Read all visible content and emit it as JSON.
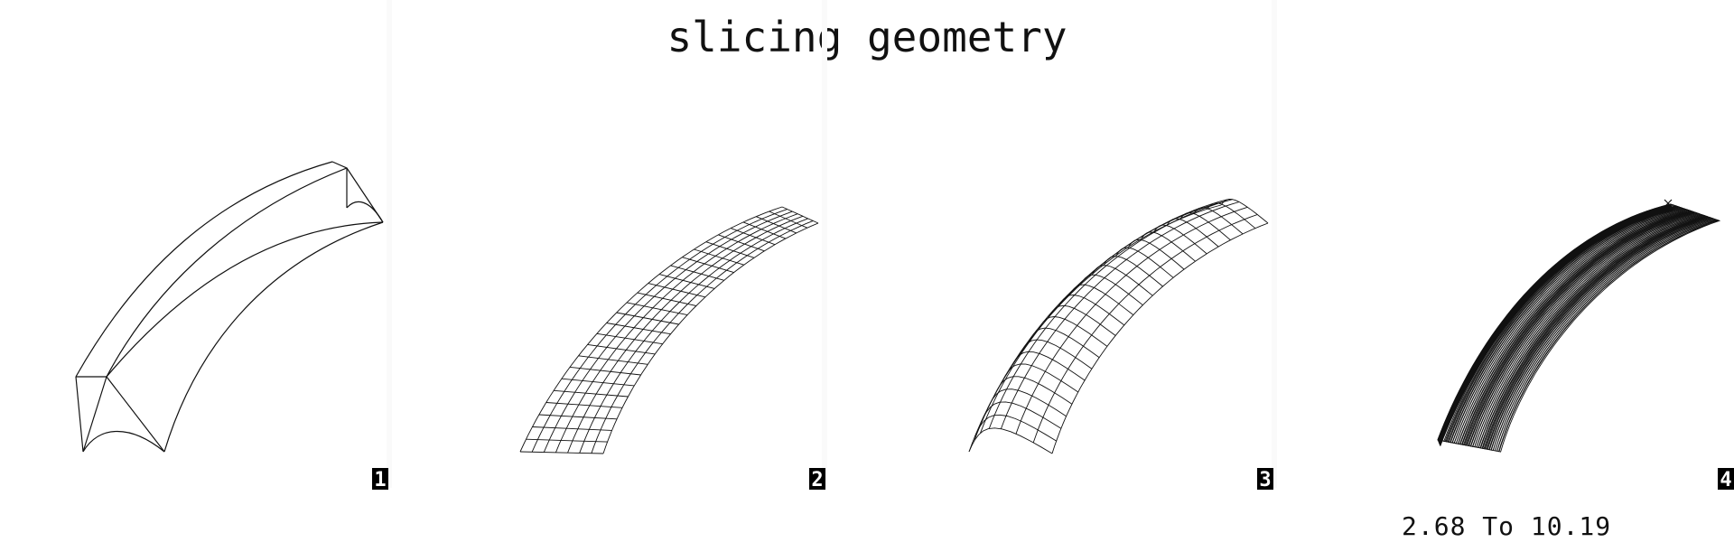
{
  "title": "slicing geometry",
  "panels": [
    {
      "number": "1"
    },
    {
      "number": "2"
    },
    {
      "number": "3"
    },
    {
      "number": "4"
    }
  ],
  "contour_range": "2.68 To 10.19",
  "colors": {
    "ink": "#111111",
    "badge_bg": "#000000",
    "badge_fg": "#ffffff"
  }
}
